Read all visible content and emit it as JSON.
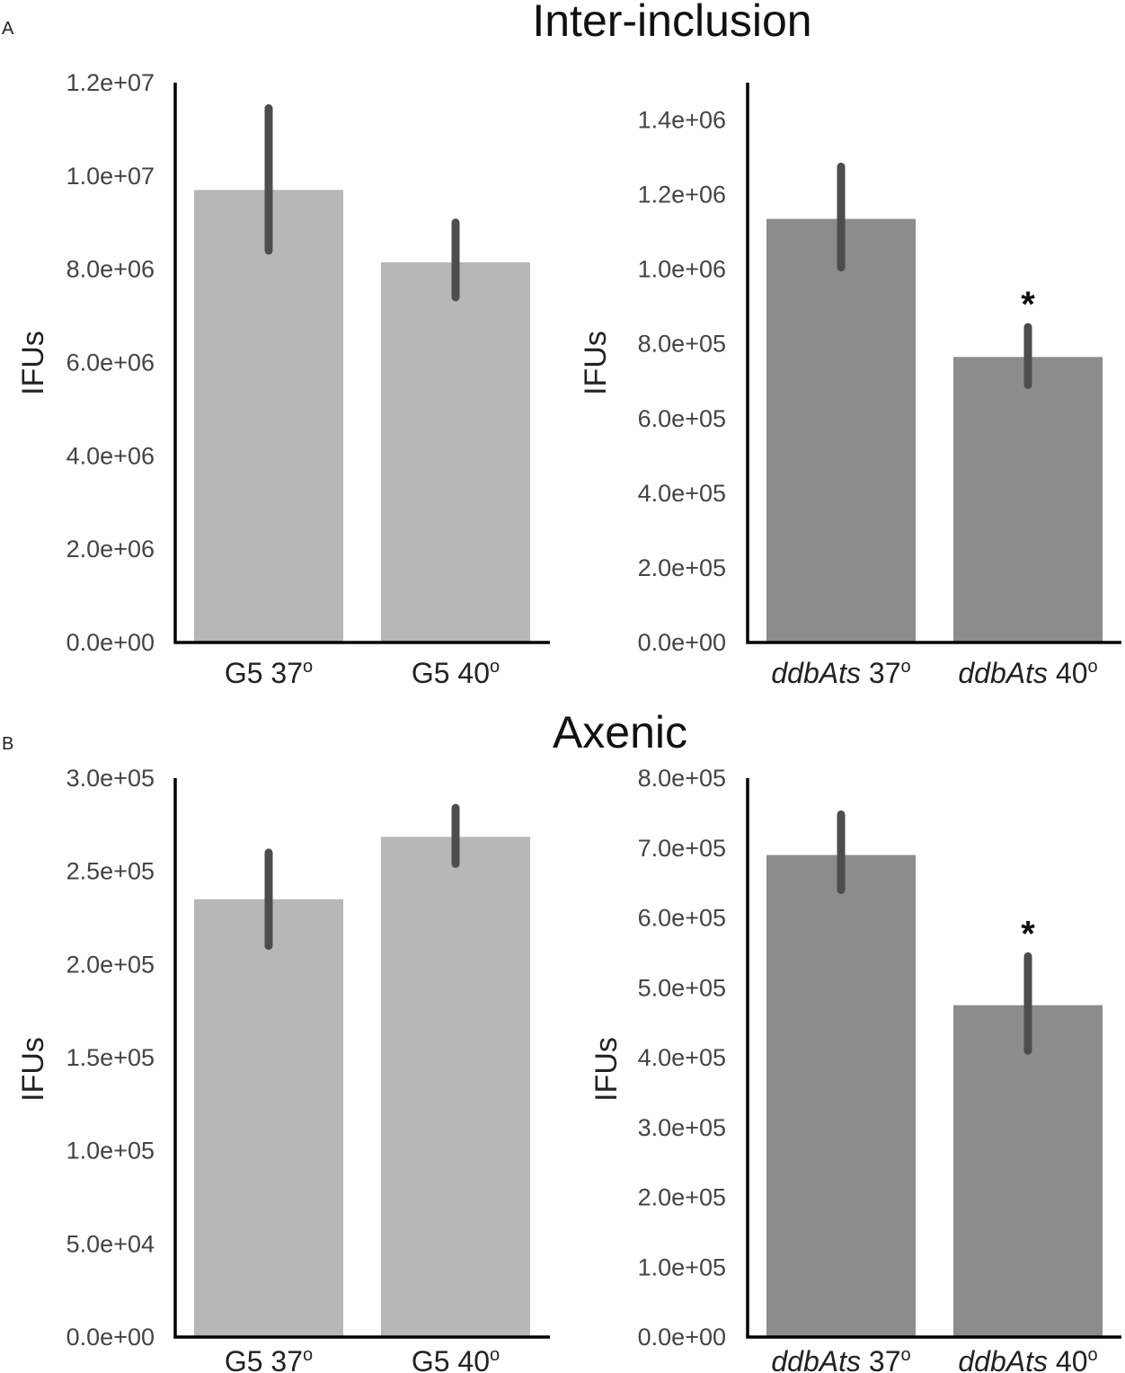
{
  "panels": {
    "a": {
      "letter": "A",
      "title": "Inter-inclusion"
    },
    "b": {
      "letter": "B",
      "title": "Axenic"
    }
  },
  "chart_data": [
    {
      "id": "a-left",
      "type": "bar",
      "title": "Inter-inclusion",
      "ylabel": "IFUs",
      "xlabel": "",
      "ylim": [
        0,
        12000000
      ],
      "ticks": [
        0,
        2000000,
        4000000,
        6000000,
        8000000,
        10000000,
        12000000
      ],
      "tick_labels": [
        "0.0e+00",
        "2.0e+06",
        "4.0e+06",
        "6.0e+06",
        "8.0e+06",
        "1.0e+07",
        "1.2e+07"
      ],
      "categories": [
        {
          "name": "G5",
          "temp": "37",
          "deg": "o",
          "italic": false
        },
        {
          "name": "G5",
          "temp": "40",
          "deg": "o",
          "italic": false
        }
      ],
      "values": [
        9700000,
        8150000
      ],
      "error_low": [
        8400000,
        7400000
      ],
      "error_high": [
        11450000,
        9000000
      ],
      "significance": [
        "",
        ""
      ],
      "bar_color": "#b7b7b7"
    },
    {
      "id": "a-right",
      "type": "bar",
      "title": "Inter-inclusion",
      "ylabel": "IFUs",
      "xlabel": "",
      "ylim": [
        0,
        1500000
      ],
      "ticks": [
        0,
        200000,
        400000,
        600000,
        800000,
        1000000,
        1200000,
        1400000
      ],
      "tick_labels": [
        "0.0e+00",
        "2.0e+05",
        "4.0e+05",
        "6.0e+05",
        "8.0e+05",
        "1.0e+06",
        "1.2e+06",
        "1.4e+06"
      ],
      "categories": [
        {
          "name": "ddbAts",
          "temp": "37",
          "deg": "o",
          "italic": true
        },
        {
          "name": "ddbAts",
          "temp": "40",
          "deg": "o",
          "italic": true
        }
      ],
      "values": [
        1135000,
        765000
      ],
      "error_low": [
        1005000,
        690000
      ],
      "error_high": [
        1275000,
        845000
      ],
      "significance": [
        "",
        "*"
      ],
      "bar_color": "#8c8c8c"
    },
    {
      "id": "b-left",
      "type": "bar",
      "title": "Axenic",
      "ylabel": "IFUs",
      "xlabel": "",
      "ylim": [
        0,
        300000
      ],
      "ticks": [
        0,
        50000,
        100000,
        150000,
        200000,
        250000,
        300000
      ],
      "tick_labels": [
        "0.0e+00",
        "5.0e+04",
        "1.0e+05",
        "1.5e+05",
        "2.0e+05",
        "2.5e+05",
        "3.0e+05"
      ],
      "categories": [
        {
          "name": "G5",
          "temp": "37",
          "deg": "o",
          "italic": false
        },
        {
          "name": "G5",
          "temp": "40",
          "deg": "o",
          "italic": false
        }
      ],
      "values": [
        235000,
        268500
      ],
      "error_low": [
        210000,
        254000
      ],
      "error_high": [
        260000,
        284000
      ],
      "significance": [
        "",
        ""
      ],
      "bar_color": "#b7b7b7"
    },
    {
      "id": "b-right",
      "type": "bar",
      "title": "Axenic",
      "ylabel": "IFUs",
      "xlabel": "",
      "ylim": [
        0,
        800000
      ],
      "ticks": [
        0,
        100000,
        200000,
        300000,
        400000,
        500000,
        600000,
        700000,
        800000
      ],
      "tick_labels": [
        "0.0e+00",
        "1.0e+05",
        "2.0e+05",
        "3.0e+05",
        "4.0e+05",
        "5.0e+05",
        "6.0e+05",
        "7.0e+05",
        "8.0e+05"
      ],
      "categories": [
        {
          "name": "ddbAts",
          "temp": "37",
          "deg": "o",
          "italic": true
        },
        {
          "name": "ddbAts",
          "temp": "40",
          "deg": "o",
          "italic": true
        }
      ],
      "values": [
        690000,
        475000
      ],
      "error_low": [
        640000,
        410000
      ],
      "error_high": [
        748000,
        545000
      ],
      "significance": [
        "",
        "*"
      ],
      "bar_color": "#8c8c8c"
    }
  ]
}
